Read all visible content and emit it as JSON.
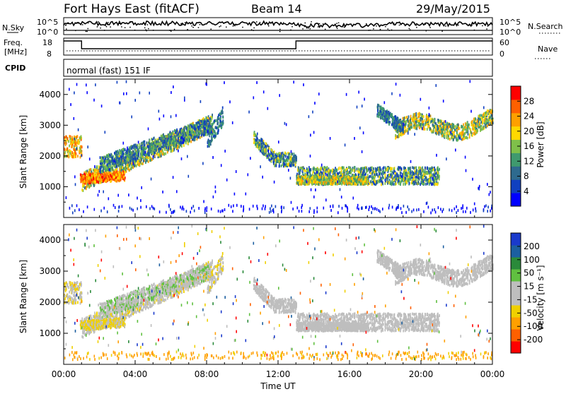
{
  "header": {
    "station": "Fort Hays East (fitACF)",
    "beam": "Beam 14",
    "date": "29/May/2015"
  },
  "nsky_panel": {
    "left_label": "N.Sky",
    "right_label": "N.Search",
    "left_ticks": [
      "10^5",
      "10^0"
    ],
    "right_ticks": [
      "10^5",
      "10^0"
    ]
  },
  "freq_panel": {
    "left_label_line1": "Freq.",
    "left_label_line2": "[MHz]",
    "right_label": "Nave",
    "left_ticks": [
      "18",
      "8"
    ],
    "right_ticks": [
      "60",
      "0"
    ]
  },
  "cpid": {
    "label": "CPID",
    "text": "normal (fast) 151 IF"
  },
  "time_axis": {
    "title": "Time UT",
    "ticks": [
      "00:00",
      "04:00",
      "08:00",
      "12:00",
      "16:00",
      "20:00",
      "00:00"
    ],
    "range_hours": [
      0,
      24
    ]
  },
  "colors": {
    "power_scale": [
      "#0000ff",
      "#1040c0",
      "#2e6a8e",
      "#3f9a6e",
      "#7fc04a",
      "#ffd800",
      "#ffa000",
      "#ff6000",
      "#ff0000"
    ],
    "velocity_scale": [
      "#ff0000",
      "#ff6000",
      "#ffa000",
      "#f0d000",
      "#bebebe",
      "#bebebe",
      "#60c040",
      "#2a8a3a",
      "#1c5fa0",
      "#1a3acc"
    ]
  },
  "chart_data": [
    {
      "type": "heatmap",
      "name": "power_panel",
      "ylabel": "Slant Range [km]",
      "yticks": [
        "1000",
        "2000",
        "3000",
        "4000"
      ],
      "ylim": [
        0,
        4500
      ],
      "colorbar_label": "Power [dB]",
      "colorbar_ticks": [
        "4",
        "8",
        "12",
        "16",
        "20",
        "24",
        "28"
      ],
      "colorbar_range": [
        0,
        30
      ],
      "echo_bands": [
        {
          "t": [
            0.0,
            0.9
          ],
          "range": [
            2000,
            2600
          ],
          "power": 20
        },
        {
          "t": [
            1.0,
            8.2
          ],
          "range": [
            1000,
            3000
          ],
          "power": 14
        },
        {
          "t": [
            0.7,
            3.5
          ],
          "range": [
            1100,
            1400
          ],
          "power": 22
        },
        {
          "t": [
            8.0,
            8.8
          ],
          "range": [
            2200,
            3300
          ],
          "power": 10
        },
        {
          "t": [
            10.5,
            13.0
          ],
          "range": [
            1700,
            2300
          ],
          "power": 12
        },
        {
          "t": [
            13.0,
            21.0
          ],
          "range": [
            1000,
            1600
          ],
          "power": 12
        },
        {
          "t": [
            18.5,
            24.0
          ],
          "range": [
            2500,
            3700
          ],
          "power": 14
        }
      ]
    },
    {
      "type": "heatmap",
      "name": "velocity_panel",
      "ylabel": "Slant Range [km]",
      "yticks": [
        "1000",
        "2000",
        "3000",
        "4000"
      ],
      "ylim": [
        0,
        4500
      ],
      "colorbar_label": "Velocity [m s⁻¹]",
      "colorbar_ticks": [
        "-200",
        "-100",
        "-50",
        "-15",
        "15",
        "50",
        "100",
        "200"
      ],
      "colorbar_range": [
        -250,
        250
      ]
    }
  ]
}
